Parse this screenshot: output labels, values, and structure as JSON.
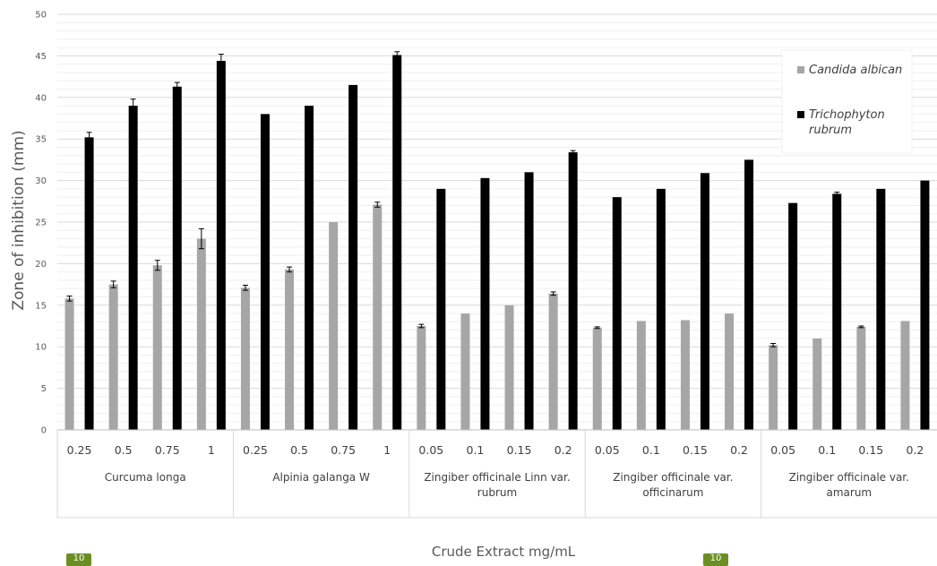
{
  "chart_data": {
    "type": "bar",
    "xlabel": "Crude Extract mg/mL",
    "ylabel": "Zone of inhibition (mm)",
    "ylim": [
      0,
      50
    ],
    "yticks": [
      0,
      5,
      10,
      15,
      20,
      25,
      30,
      35,
      40,
      45,
      50
    ],
    "grid": true,
    "legend_position": "top-right",
    "groups": [
      {
        "label": "Curcuma longa",
        "categories": [
          "0.25",
          "0.5",
          "0.75",
          "1"
        ]
      },
      {
        "label": "Alpinia galanga W",
        "categories": [
          "0.25",
          "0.5",
          "0.75",
          "1"
        ]
      },
      {
        "label": "Zingiber officinale Linn var. rubrum",
        "label_lines": [
          "Zingiber officinale Linn var.",
          "rubrum"
        ],
        "categories": [
          "0.05",
          "0.1",
          "0.15",
          "0.2"
        ]
      },
      {
        "label": "Zingiber officinale var. officinarum",
        "label_lines": [
          "Zingiber officinale var.",
          "officinarum"
        ],
        "categories": [
          "0.05",
          "0.1",
          "0.15",
          "0.2"
        ]
      },
      {
        "label": "Zingiber officinale var. amarum",
        "label_lines": [
          "Zingiber officinale var.",
          "amarum"
        ],
        "categories": [
          "0.05",
          "0.1",
          "0.15",
          "0.2"
        ]
      }
    ],
    "series": [
      {
        "name": "Candida albican",
        "color": "#a6a6a6",
        "values": [
          15.8,
          17.5,
          19.8,
          23.0,
          17.1,
          19.3,
          25.0,
          27.1,
          12.5,
          14.0,
          15.0,
          16.4,
          12.3,
          13.1,
          13.2,
          14.0,
          10.2,
          11.0,
          12.4,
          13.1
        ],
        "errors": [
          0.3,
          0.4,
          0.6,
          1.2,
          0.3,
          0.3,
          0.0,
          0.3,
          0.2,
          0.0,
          0.0,
          0.2,
          0.1,
          0.0,
          0.0,
          0.0,
          0.2,
          0.0,
          0.1,
          0.0
        ]
      },
      {
        "name": "Trichophyton rubrum",
        "name_lines": [
          "Trichophyton",
          "rubrum"
        ],
        "color": "#000000",
        "values": [
          35.2,
          39.0,
          41.3,
          44.4,
          38.0,
          39.0,
          41.5,
          45.1,
          29.0,
          30.3,
          31.0,
          33.4,
          28.0,
          29.0,
          30.9,
          32.5,
          27.3,
          28.4,
          29.0,
          30.0
        ],
        "errors": [
          0.6,
          0.8,
          0.5,
          0.8,
          0.0,
          0.0,
          0.0,
          0.4,
          0.0,
          0.0,
          0.0,
          0.2,
          0.0,
          0.0,
          0.0,
          0.0,
          0.0,
          0.2,
          0.0,
          0.0
        ]
      }
    ]
  },
  "page_markers": [
    "10",
    "10"
  ]
}
